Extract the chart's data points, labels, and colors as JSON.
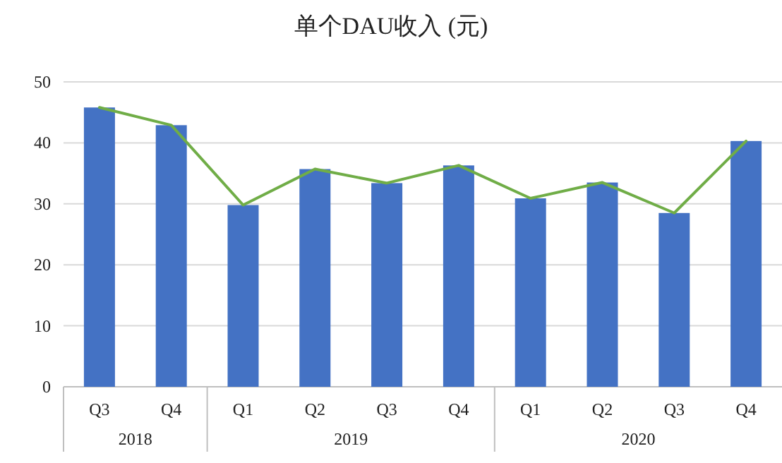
{
  "chart_data": {
    "type": "bar",
    "title": "单个DAU收入 (元)",
    "categories": [
      "Q3",
      "Q4",
      "Q1",
      "Q2",
      "Q3",
      "Q4",
      "Q1",
      "Q2",
      "Q3",
      "Q4"
    ],
    "series": [
      {
        "color": "#4472c4",
        "values": [
          45.8,
          42.9,
          29.8,
          35.7,
          33.4,
          36.3,
          30.9,
          33.5,
          28.5,
          40.3
        ]
      },
      {
        "type": "line",
        "color": "#70ad47",
        "values": [
          45.8,
          42.9,
          29.8,
          35.7,
          33.4,
          36.3,
          30.9,
          33.5,
          28.5,
          40.3
        ]
      }
    ],
    "annotations": [
      "2018",
      "2019",
      "2020"
    ],
    "ylim": [
      0,
      50
    ],
    "yticks": [
      0,
      10,
      20,
      30,
      40,
      50
    ],
    "grid": "y"
  }
}
